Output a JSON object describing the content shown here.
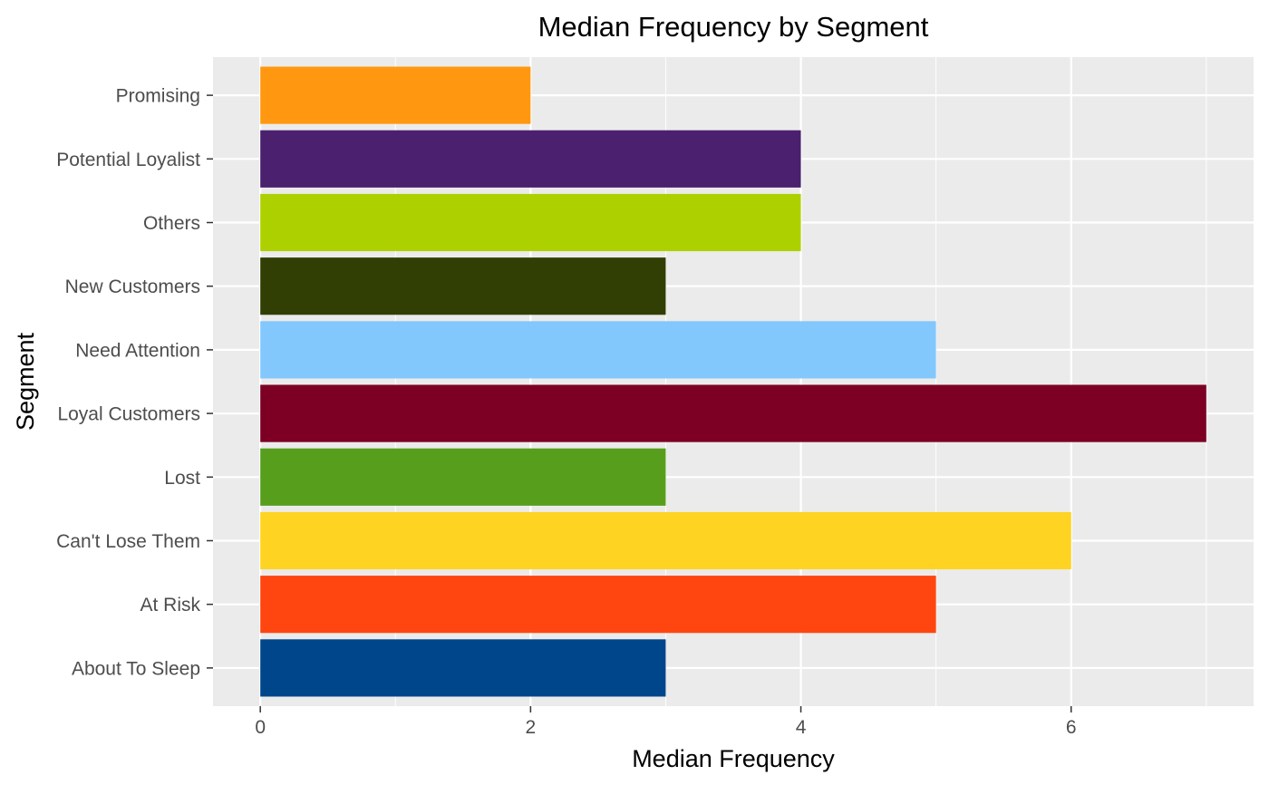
{
  "chart_data": {
    "type": "bar",
    "orientation": "horizontal",
    "title": "Median Frequency by Segment",
    "xlabel": "Median Frequency",
    "ylabel": "Segment",
    "categories": [
      "About To Sleep",
      "At Risk",
      "Can't Lose Them",
      "Lost",
      "Loyal Customers",
      "Need Attention",
      "New Customers",
      "Others",
      "Potential Loyalist",
      "Promising"
    ],
    "values": [
      3,
      5,
      6,
      3,
      7,
      5,
      3,
      4,
      4,
      2
    ],
    "colors": [
      "#00468B",
      "#FF4510",
      "#FED322",
      "#579E1D",
      "#7D0024",
      "#82C8FD",
      "#313F04",
      "#ADD100",
      "#4A206F",
      "#FF9810"
    ],
    "xlim": [
      -0.35,
      7.35
    ],
    "xticks": [
      0,
      2,
      4,
      6
    ],
    "grid": true,
    "legend": "none",
    "panel_background": "#EBEBEB"
  }
}
